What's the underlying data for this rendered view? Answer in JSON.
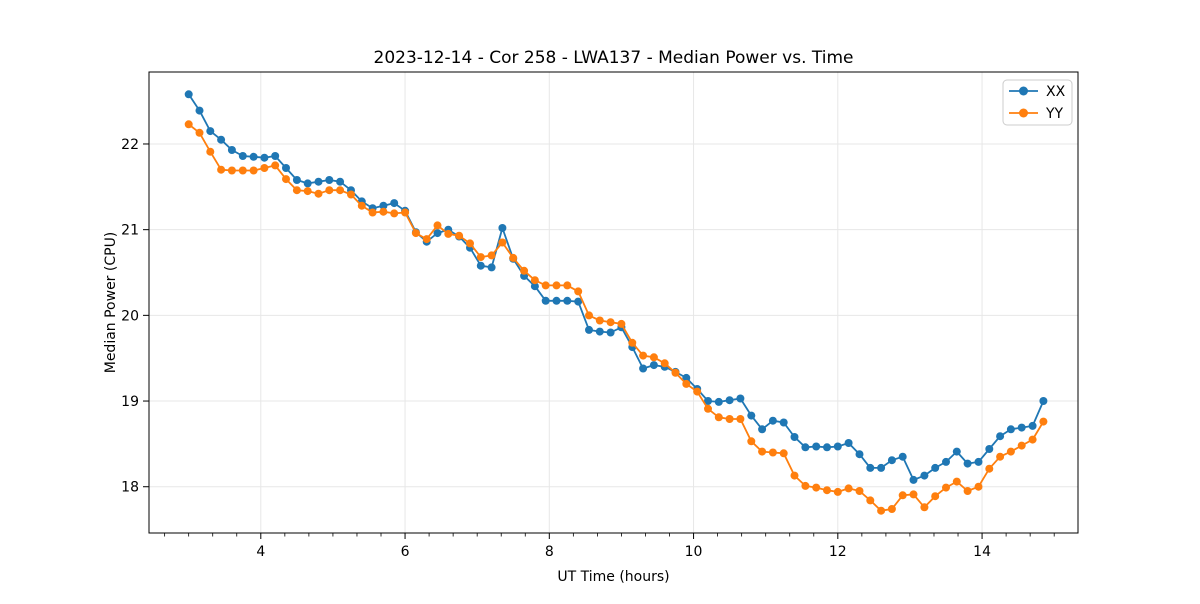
{
  "chart_data": {
    "type": "line",
    "title": "2023-12-14 - Cor 258 - LWA137 - Median Power vs. Time",
    "xlabel": "UT Time (hours)",
    "ylabel": "Median Power (CPU)",
    "xlim": [
      2.45,
      15.33
    ],
    "ylim": [
      17.46,
      22.84
    ],
    "x_ticks": [
      4,
      6,
      8,
      10,
      12,
      14
    ],
    "x_minor_step_hours": 0.3333,
    "y_ticks": [
      18,
      19,
      20,
      21,
      22
    ],
    "grid": true,
    "grid_color": "#e7e7e7",
    "legend_position": "upper right",
    "x": [
      3.0,
      3.15,
      3.3,
      3.45,
      3.6,
      3.75,
      3.9,
      4.05,
      4.2,
      4.35,
      4.5,
      4.65,
      4.8,
      4.95,
      5.1,
      5.25,
      5.4,
      5.55,
      5.7,
      5.85,
      6.0,
      6.15,
      6.3,
      6.45,
      6.6,
      6.75,
      6.9,
      7.05,
      7.2,
      7.35,
      7.5,
      7.65,
      7.8,
      7.95,
      8.1,
      8.25,
      8.4,
      8.55,
      8.7,
      8.85,
      9.0,
      9.15,
      9.3,
      9.45,
      9.6,
      9.75,
      9.9,
      10.05,
      10.2,
      10.35,
      10.5,
      10.65,
      10.8,
      10.95,
      11.1,
      11.25,
      11.4,
      11.55,
      11.7,
      11.85,
      12.0,
      12.15,
      12.3,
      12.45,
      12.6,
      12.75,
      12.9,
      13.05,
      13.2,
      13.35,
      13.5,
      13.65,
      13.8,
      13.95,
      14.1,
      14.25,
      14.4,
      14.55,
      14.7,
      14.85
    ],
    "series": [
      {
        "name": "XX",
        "color": "#1f77b4",
        "values": [
          22.58,
          22.39,
          22.15,
          22.05,
          21.93,
          21.86,
          21.85,
          21.84,
          21.86,
          21.72,
          21.58,
          21.54,
          21.56,
          21.58,
          21.56,
          21.46,
          21.33,
          21.25,
          21.28,
          21.31,
          21.22,
          20.97,
          20.86,
          20.96,
          21.0,
          20.92,
          20.79,
          20.58,
          20.56,
          21.02,
          20.66,
          20.46,
          20.34,
          20.17,
          20.17,
          20.17,
          20.16,
          19.83,
          19.81,
          19.8,
          19.86,
          19.63,
          19.38,
          19.42,
          19.4,
          19.34,
          19.27,
          19.14,
          19.0,
          18.99,
          19.01,
          19.03,
          18.83,
          18.67,
          18.77,
          18.75,
          18.58,
          18.46,
          18.47,
          18.46,
          18.47,
          18.51,
          18.38,
          18.22,
          18.22,
          18.31,
          18.35,
          18.08,
          18.13,
          18.22,
          18.29,
          18.41,
          18.27,
          18.29,
          18.44,
          18.59,
          18.67,
          18.69,
          18.71,
          19.0
        ]
      },
      {
        "name": "YY",
        "color": "#ff7f0e",
        "values": [
          22.23,
          22.13,
          21.91,
          21.7,
          21.69,
          21.69,
          21.69,
          21.72,
          21.75,
          21.59,
          21.46,
          21.45,
          21.42,
          21.46,
          21.46,
          21.41,
          21.28,
          21.2,
          21.21,
          21.19,
          21.2,
          20.96,
          20.89,
          21.05,
          20.95,
          20.93,
          20.84,
          20.68,
          20.7,
          20.85,
          20.67,
          20.52,
          20.41,
          20.35,
          20.35,
          20.35,
          20.28,
          20.0,
          19.94,
          19.92,
          19.9,
          19.68,
          19.53,
          19.51,
          19.44,
          19.33,
          19.2,
          19.11,
          18.91,
          18.81,
          18.79,
          18.79,
          18.53,
          18.41,
          18.4,
          18.39,
          18.13,
          18.01,
          17.99,
          17.96,
          17.94,
          17.98,
          17.95,
          17.84,
          17.72,
          17.74,
          17.9,
          17.91,
          17.76,
          17.89,
          17.99,
          18.06,
          17.95,
          18.0,
          18.21,
          18.35,
          18.41,
          18.48,
          18.55,
          18.76
        ]
      }
    ]
  }
}
